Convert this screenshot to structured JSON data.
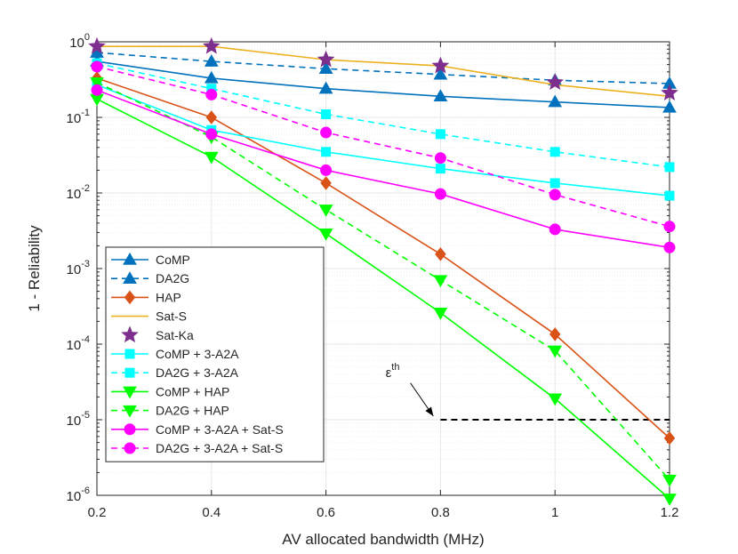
{
  "chart_data": {
    "type": "line",
    "title": "",
    "xlabel": "AV allocated bandwidth (MHz)",
    "ylabel": "1 - Reliability",
    "yscale": "log",
    "xlim": [
      0.2,
      1.2
    ],
    "ylim": [
      1e-06,
      1
    ],
    "grid": true,
    "legend_position": "bottom-left",
    "x": [
      0.2,
      0.4,
      0.6,
      0.8,
      1.0,
      1.2
    ],
    "x_tick_labels": [
      "0.2",
      "0.4",
      "0.6",
      "0.8",
      "1",
      "1.2"
    ],
    "y_ticks": [
      {
        "base": "10",
        "exp": "0",
        "value": 1
      },
      {
        "base": "10",
        "exp": "-1",
        "value": 0.1
      },
      {
        "base": "10",
        "exp": "-2",
        "value": 0.01
      },
      {
        "base": "10",
        "exp": "-3",
        "value": 0.001
      },
      {
        "base": "10",
        "exp": "-4",
        "value": 0.0001
      },
      {
        "base": "10",
        "exp": "-5",
        "value": 1e-05
      },
      {
        "base": "10",
        "exp": "-6",
        "value": 1e-06
      }
    ],
    "series": [
      {
        "name": "CoMP",
        "color": "#0072BD",
        "dash": "solid",
        "marker": "triangle-up",
        "values": [
          0.55,
          0.33,
          0.24,
          0.19,
          0.16,
          0.135
        ]
      },
      {
        "name": "DA2G",
        "color": "#0072BD",
        "dash": "dashed",
        "marker": "triangle-up",
        "values": [
          0.72,
          0.55,
          0.44,
          0.37,
          0.31,
          0.28
        ]
      },
      {
        "name": "HAP",
        "color": "#D95319",
        "dash": "solid",
        "marker": "diamond",
        "values": [
          0.33,
          0.1,
          0.0135,
          0.00155,
          0.000135,
          5.7e-06
        ]
      },
      {
        "name": "Sat-S",
        "color": "#EDB120",
        "dash": "solid",
        "marker": "none",
        "values": [
          0.87,
          0.87,
          0.58,
          0.48,
          0.27,
          0.19
        ]
      },
      {
        "name": "Sat-Ka",
        "color": "#7E2F8E",
        "dash": "none",
        "marker": "star",
        "values": [
          0.87,
          0.87,
          0.58,
          0.48,
          0.29,
          0.21
        ]
      },
      {
        "name": "CoMP + 3-A2A",
        "color": "#00FFFF",
        "dash": "solid",
        "marker": "square",
        "values": [
          0.27,
          0.068,
          0.035,
          0.021,
          0.0135,
          0.0092
        ]
      },
      {
        "name": "DA2G + 3-A2A",
        "color": "#00FFFF",
        "dash": "dashed",
        "marker": "square",
        "values": [
          0.52,
          0.24,
          0.11,
          0.06,
          0.035,
          0.022
        ]
      },
      {
        "name": "CoMP + HAP",
        "color": "#00FF00",
        "dash": "solid",
        "marker": "triangle-down",
        "values": [
          0.175,
          0.03,
          0.0029,
          0.00026,
          1.9e-05,
          9e-07
        ]
      },
      {
        "name": "DA2G + HAP",
        "color": "#00FF00",
        "dash": "dashed",
        "marker": "triangle-down",
        "values": [
          0.29,
          0.055,
          0.006,
          0.0007,
          8.2e-05,
          1.6e-06
        ]
      },
      {
        "name": "CoMP + 3-A2A + Sat-S",
        "color": "#FF00FF",
        "dash": "solid",
        "marker": "circle",
        "values": [
          0.23,
          0.06,
          0.02,
          0.0097,
          0.0033,
          0.0019
        ]
      },
      {
        "name": "DA2G + 3-A2A + Sat-S",
        "color": "#FF00FF",
        "dash": "dashed",
        "marker": "circle",
        "values": [
          0.47,
          0.2,
          0.063,
          0.029,
          0.0095,
          0.0036
        ]
      }
    ],
    "threshold": {
      "value": 1e-05,
      "x_start": 0.8,
      "x_end": 1.2,
      "color": "#000000"
    },
    "annotation": {
      "base": "ε",
      "sup": "th",
      "text_x": 0.6,
      "text_y": 3.5e-05,
      "arrow_to_x": 0.8,
      "arrow_to_y": 1e-05
    }
  }
}
